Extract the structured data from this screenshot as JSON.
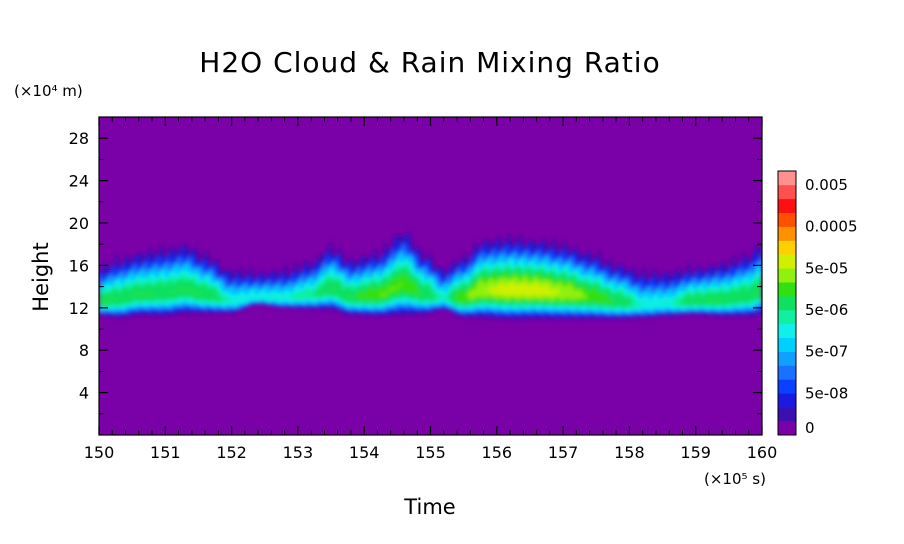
{
  "chart_data": {
    "type": "heatmap",
    "title": "H2O Cloud & Rain Mixing Ratio",
    "xlabel": "Time",
    "ylabel": "Height",
    "x_unit": "(×10⁵ s)",
    "y_unit": "(×10⁴ m)",
    "xlim": [
      150,
      160
    ],
    "ylim": [
      0,
      30
    ],
    "x_ticks": [
      "150",
      "151",
      "152",
      "153",
      "154",
      "155",
      "156",
      "157",
      "158",
      "159",
      "160"
    ],
    "y_ticks": [
      "4",
      "8",
      "12",
      "16",
      "20",
      "24",
      "28"
    ],
    "colorbar": {
      "labels": [
        "0",
        "5e-08",
        "5e-07",
        "5e-06",
        "5e-05",
        "0.0005",
        "0.005"
      ],
      "colors": [
        "#7a00a8",
        "#3a10b0",
        "#1a1ae0",
        "#0a40ff",
        "#1a70ff",
        "#10a0ff",
        "#00d0ff",
        "#10f0e8",
        "#10f0a0",
        "#10e060",
        "#30e010",
        "#90f010",
        "#d0f000",
        "#ffd000",
        "#ff9000",
        "#ff5000",
        "#ff1010",
        "#ff5050",
        "#ff9090"
      ]
    },
    "background_value": 0,
    "cloud_layer": {
      "x": [
        150.0,
        150.3,
        150.6,
        151.0,
        151.3,
        151.6,
        152.0,
        152.4,
        152.8,
        153.2,
        153.5,
        153.8,
        154.2,
        154.6,
        154.9,
        155.2,
        155.5,
        155.8,
        156.2,
        156.6,
        157.0,
        157.4,
        157.8,
        158.2,
        158.6,
        159.0,
        159.4,
        159.8,
        160.0
      ],
      "top": [
        15.8,
        16.6,
        17.2,
        17.6,
        18.0,
        17.0,
        15.6,
        15.4,
        15.6,
        16.4,
        17.8,
        16.6,
        17.2,
        19.2,
        17.2,
        15.8,
        16.8,
        18.4,
        18.6,
        18.4,
        18.0,
        17.2,
        16.2,
        15.4,
        15.4,
        15.8,
        16.2,
        17.0,
        18.2
      ],
      "bottom": [
        11.2,
        10.9,
        11.1,
        11.0,
        11.2,
        11.3,
        11.5,
        12.4,
        12.0,
        11.8,
        11.6,
        11.2,
        11.0,
        10.9,
        11.2,
        11.8,
        10.9,
        10.7,
        10.5,
        10.6,
        10.6,
        10.7,
        10.8,
        11.0,
        11.2,
        11.3,
        11.1,
        11.0,
        11.0
      ],
      "peak_value": [
        5e-06,
        5e-06,
        5e-06,
        5e-06,
        5e-06,
        5e-06,
        1e-06,
        1e-06,
        1e-06,
        2e-06,
        5e-06,
        5e-06,
        1e-05,
        1e-05,
        5e-06,
        1e-06,
        1e-05,
        2e-05,
        3e-05,
        3e-05,
        2e-05,
        1e-05,
        5e-06,
        1e-06,
        1e-06,
        5e-06,
        5e-06,
        5e-06,
        5e-06
      ]
    }
  }
}
